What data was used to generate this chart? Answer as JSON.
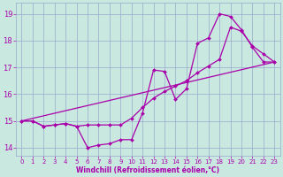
{
  "xlabel": "Windchill (Refroidissement éolien,°C)",
  "xlim": [
    -0.5,
    23.5
  ],
  "ylim": [
    13.7,
    19.4
  ],
  "yticks": [
    14,
    15,
    16,
    17,
    18,
    19
  ],
  "xticks": [
    0,
    1,
    2,
    3,
    4,
    5,
    6,
    7,
    8,
    9,
    10,
    11,
    12,
    13,
    14,
    15,
    16,
    17,
    18,
    19,
    20,
    21,
    22,
    23
  ],
  "bg_color": "#c8e8e0",
  "grid_color": "#99aacc",
  "line_color": "#aa00aa",
  "line1_x": [
    0,
    1,
    2,
    3,
    4,
    5,
    6,
    7,
    8,
    9,
    10,
    11,
    12,
    13,
    14,
    15,
    16,
    17,
    18,
    19,
    20,
    21,
    22,
    23
  ],
  "line1_y": [
    15.0,
    15.0,
    14.8,
    14.85,
    14.9,
    14.8,
    14.0,
    14.1,
    14.15,
    14.3,
    14.3,
    15.3,
    16.9,
    16.85,
    15.8,
    16.2,
    17.9,
    18.1,
    19.0,
    18.9,
    18.4,
    17.75,
    17.2,
    17.2
  ],
  "line2_x": [
    0,
    23
  ],
  "line2_y": [
    15.0,
    17.2
  ],
  "line3_x": [
    0,
    1,
    2,
    3,
    4,
    5,
    6,
    7,
    8,
    9,
    10,
    11,
    12,
    13,
    14,
    15,
    16,
    17,
    18,
    19,
    20,
    21,
    22,
    23
  ],
  "line3_y": [
    15.0,
    15.0,
    14.8,
    14.85,
    14.9,
    14.8,
    14.85,
    14.85,
    14.85,
    14.85,
    15.1,
    15.5,
    15.85,
    16.1,
    16.3,
    16.5,
    16.8,
    17.05,
    17.3,
    18.5,
    18.35,
    17.8,
    17.5,
    17.2
  ]
}
